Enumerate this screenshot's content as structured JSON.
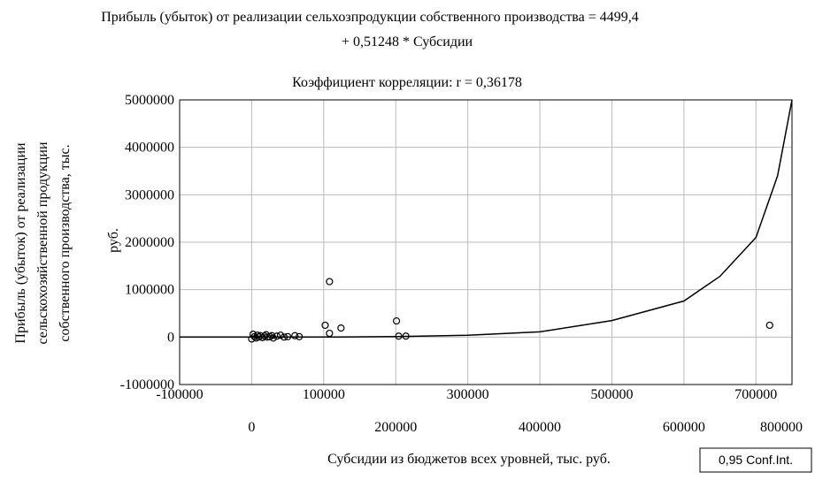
{
  "chart_data": {
    "type": "scatter",
    "title_lines": [
      "Прибыль (убыток) от реализации сельхозпродукции собственного производства     = 4499,4",
      "+ 0,51248 * Субсидии"
    ],
    "subtitle": "Коэффициент корреляции: r = 0,36178",
    "x_label": "Субсидии из бюджетов всех уровней, тыс. руб.",
    "y_label_lines": [
      "Прибыль (убыток) от реализации",
      "сельскохозяйственной продукции",
      "собственного производства, тыс.",
      "руб."
    ],
    "legend_box": "0,95 Conf.Int.",
    "xlim": [
      -100000,
      750000
    ],
    "xticks": [
      -100000,
      0,
      100000,
      200000,
      300000,
      400000,
      500000,
      600000,
      700000,
      800000
    ],
    "ylim": [
      -1000000,
      5000000
    ],
    "yticks": [
      -1000000,
      0,
      1000000,
      2000000,
      3000000,
      4000000,
      5000000
    ],
    "grid": true,
    "points": {
      "x": [
        0,
        2000,
        4000,
        6000,
        8000,
        10000,
        12000,
        15000,
        18000,
        20000,
        22000,
        25000,
        28000,
        30000,
        35000,
        40000,
        45000,
        50000,
        60000,
        66000,
        102000,
        108000,
        108000,
        124000,
        201000,
        204000,
        214000,
        719000
      ],
      "y": [
        -40000,
        60000,
        10000,
        -20000,
        40000,
        0,
        30000,
        -10000,
        20000,
        50000,
        0,
        10000,
        30000,
        -20000,
        20000,
        40000,
        0,
        10000,
        30000,
        10000,
        250000,
        1170000,
        80000,
        190000,
        340000,
        20000,
        20000,
        250000
      ]
    },
    "curve": {
      "x": [
        -100000,
        0,
        100000,
        200000,
        300000,
        400000,
        500000,
        600000,
        650000,
        700000,
        730000,
        750000
      ],
      "y": [
        0,
        0,
        0,
        10000,
        40000,
        110000,
        350000,
        760000,
        1280000,
        2100000,
        3400000,
        5000000
      ]
    }
  }
}
